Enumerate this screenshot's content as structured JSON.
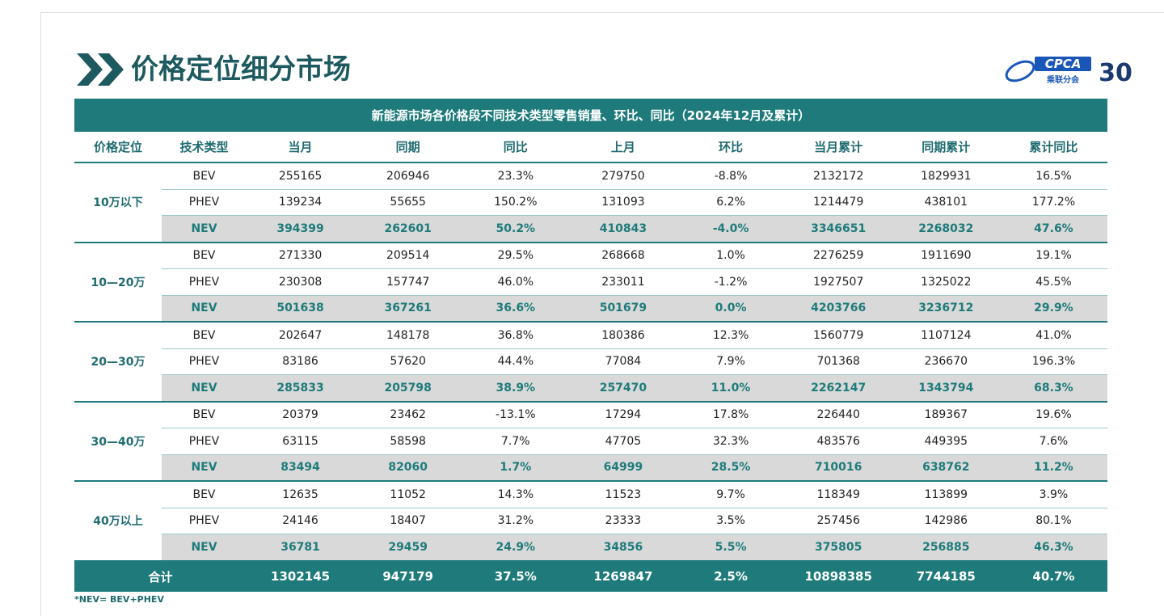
{
  "header": {
    "title": "价格定位细分市场",
    "logo_text": "CPCA",
    "logo_subtext": "乘联分会",
    "anniversary": "30"
  },
  "table": {
    "caption": "新能源市场各价格段不同技术类型零售销量、环比、同比（2024年12月及累计）",
    "columns": [
      "价格定位",
      "技术类型",
      "当月",
      "同期",
      "同比",
      "上月",
      "环比",
      "当月累计",
      "同期累计",
      "累计同比"
    ],
    "groups": [
      {
        "label": "10万以下",
        "rows": [
          [
            "BEV",
            255165,
            206946,
            "23.3%",
            279750,
            "-8.8%",
            2132172,
            1829931,
            "16.5%"
          ],
          [
            "PHEV",
            139234,
            55655,
            "150.2%",
            131093,
            "6.2%",
            1214479,
            438101,
            "177.2%"
          ],
          [
            "NEV",
            394399,
            262601,
            "50.2%",
            410843,
            "-4.0%",
            3346651,
            2268032,
            "47.6%"
          ]
        ]
      },
      {
        "label": "10—20万",
        "rows": [
          [
            "BEV",
            271330,
            209514,
            "29.5%",
            268668,
            "1.0%",
            2276259,
            1911690,
            "19.1%"
          ],
          [
            "PHEV",
            230308,
            157747,
            "46.0%",
            233011,
            "-1.2%",
            1927507,
            1325022,
            "45.5%"
          ],
          [
            "NEV",
            501638,
            367261,
            "36.6%",
            501679,
            "0.0%",
            4203766,
            3236712,
            "29.9%"
          ]
        ]
      },
      {
        "label": "20—30万",
        "rows": [
          [
            "BEV",
            202647,
            148178,
            "36.8%",
            180386,
            "12.3%",
            1560779,
            1107124,
            "41.0%"
          ],
          [
            "PHEV",
            83186,
            57620,
            "44.4%",
            77084,
            "7.9%",
            701368,
            236670,
            "196.3%"
          ],
          [
            "NEV",
            285833,
            205798,
            "38.9%",
            257470,
            "11.0%",
            2262147,
            1343794,
            "68.3%"
          ]
        ]
      },
      {
        "label": "30—40万",
        "rows": [
          [
            "BEV",
            20379,
            23462,
            "-13.1%",
            17294,
            "17.8%",
            226440,
            189367,
            "19.6%"
          ],
          [
            "PHEV",
            63115,
            58598,
            "7.7%",
            47705,
            "32.3%",
            483576,
            449395,
            "7.6%"
          ],
          [
            "NEV",
            83494,
            82060,
            "1.7%",
            64999,
            "28.5%",
            710016,
            638762,
            "11.2%"
          ]
        ]
      },
      {
        "label": "40万以上",
        "rows": [
          [
            "BEV",
            12635,
            11052,
            "14.3%",
            11523,
            "9.7%",
            118349,
            113899,
            "3.9%"
          ],
          [
            "PHEV",
            24146,
            18407,
            "31.2%",
            23333,
            "3.5%",
            257456,
            142986,
            "80.1%"
          ],
          [
            "NEV",
            36781,
            29459,
            "24.9%",
            34856,
            "5.5%",
            375805,
            256885,
            "46.3%"
          ]
        ]
      }
    ],
    "total": {
      "label": "合计",
      "values": [
        1302145,
        947179,
        "37.5%",
        1269847,
        "2.5%",
        10898385,
        7744185,
        "40.7%"
      ]
    }
  },
  "footnote": "*NEV= BEV+PHEV"
}
